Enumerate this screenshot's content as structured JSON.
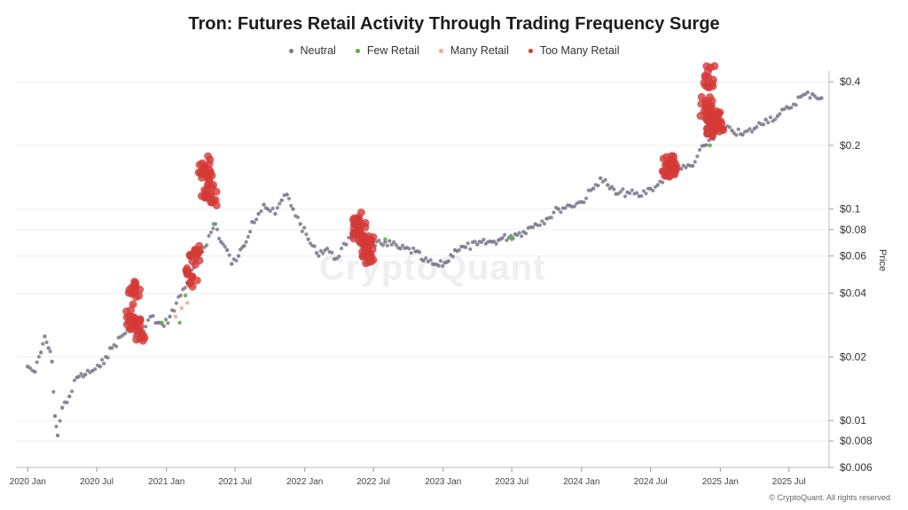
{
  "chart_data": {
    "type": "scatter",
    "title": "Tron: Futures Retail Activity Through Trading Frequency Surge",
    "ylabel": "Price",
    "yscale": "log",
    "ylim": [
      0.006,
      0.45
    ],
    "xlim": [
      "2019-12-01",
      "2025-10-15"
    ],
    "y_ticks": [
      {
        "value": 0.4,
        "label": "$0.4"
      },
      {
        "value": 0.2,
        "label": "$0.2"
      },
      {
        "value": 0.1,
        "label": "$0.1"
      },
      {
        "value": 0.08,
        "label": "$0.08"
      },
      {
        "value": 0.06,
        "label": "$0.06"
      },
      {
        "value": 0.04,
        "label": "$0.04"
      },
      {
        "value": 0.02,
        "label": "$0.02"
      },
      {
        "value": 0.01,
        "label": "$0.01"
      },
      {
        "value": 0.008,
        "label": "$0.008"
      },
      {
        "value": 0.006,
        "label": "$0.006"
      }
    ],
    "x_ticks": [
      {
        "date": "2020-01-01",
        "label": "2020 Jan"
      },
      {
        "date": "2020-07-01",
        "label": "2020 Jul"
      },
      {
        "date": "2021-01-01",
        "label": "2021 Jan"
      },
      {
        "date": "2021-07-01",
        "label": "2021 Jul"
      },
      {
        "date": "2022-01-01",
        "label": "2022 Jan"
      },
      {
        "date": "2022-07-01",
        "label": "2022 Jul"
      },
      {
        "date": "2023-01-01",
        "label": "2023 Jan"
      },
      {
        "date": "2023-07-01",
        "label": "2023 Jul"
      },
      {
        "date": "2024-01-01",
        "label": "2024 Jan"
      },
      {
        "date": "2024-07-01",
        "label": "2024 Jul"
      },
      {
        "date": "2025-01-01",
        "label": "2025 Jan"
      },
      {
        "date": "2025-07-01",
        "label": "2025 Jul"
      }
    ],
    "legend": [
      {
        "name": "Neutral",
        "color": "#7b7889"
      },
      {
        "name": "Few Retail",
        "color": "#5fae4a"
      },
      {
        "name": "Many Retail",
        "color": "#f0a896"
      },
      {
        "name": "Too Many Retail",
        "color": "#d43a36"
      }
    ],
    "series": [
      {
        "name": "Neutral",
        "color": "#7b7889",
        "points": [
          [
            "2020-01-01",
            0.018
          ],
          [
            "2020-01-20",
            0.017
          ],
          [
            "2020-02-05",
            0.021
          ],
          [
            "2020-02-15",
            0.025
          ],
          [
            "2020-02-25",
            0.022
          ],
          [
            "2020-03-05",
            0.019
          ],
          [
            "2020-03-13",
            0.0105
          ],
          [
            "2020-03-20",
            0.0085
          ],
          [
            "2020-04-01",
            0.0115
          ],
          [
            "2020-04-20",
            0.013
          ],
          [
            "2020-05-10",
            0.016
          ],
          [
            "2020-06-01",
            0.0165
          ],
          [
            "2020-06-20",
            0.0172
          ],
          [
            "2020-07-10",
            0.018
          ],
          [
            "2020-07-25",
            0.02
          ],
          [
            "2020-08-10",
            0.022
          ],
          [
            "2020-09-20",
            0.027
          ],
          [
            "2020-10-15",
            0.026
          ],
          [
            "2020-11-01",
            0.0265
          ],
          [
            "2020-11-20",
            0.031
          ],
          [
            "2020-12-10",
            0.029
          ],
          [
            "2020-12-25",
            0.028
          ],
          [
            "2021-01-10",
            0.031
          ],
          [
            "2021-05-10",
            0.085
          ],
          [
            "2021-05-25",
            0.07
          ],
          [
            "2021-06-10",
            0.064
          ],
          [
            "2021-06-22",
            0.055
          ],
          [
            "2021-07-10",
            0.06
          ],
          [
            "2021-07-25",
            0.067
          ],
          [
            "2021-08-15",
            0.087
          ],
          [
            "2021-09-01",
            0.095
          ],
          [
            "2021-09-15",
            0.105
          ],
          [
            "2021-09-25",
            0.1
          ],
          [
            "2021-10-15",
            0.095
          ],
          [
            "2021-11-01",
            0.11
          ],
          [
            "2021-11-15",
            0.117
          ],
          [
            "2021-12-01",
            0.1
          ],
          [
            "2021-12-20",
            0.085
          ],
          [
            "2022-01-10",
            0.072
          ],
          [
            "2022-02-01",
            0.062
          ],
          [
            "2022-03-01",
            0.065
          ],
          [
            "2022-03-20",
            0.058
          ],
          [
            "2022-04-20",
            0.068
          ],
          [
            "2022-05-10",
            0.078
          ],
          [
            "2022-05-20",
            0.07
          ],
          [
            "2022-06-01",
            0.07
          ],
          [
            "2022-07-05",
            0.067
          ],
          [
            "2022-08-01",
            0.07
          ],
          [
            "2022-09-10",
            0.065
          ],
          [
            "2022-10-20",
            0.063
          ],
          [
            "2022-11-10",
            0.057
          ],
          [
            "2022-12-05",
            0.055
          ],
          [
            "2022-12-20",
            0.054
          ],
          [
            "2023-01-10",
            0.056
          ],
          [
            "2023-02-01",
            0.064
          ],
          [
            "2023-03-01",
            0.066
          ],
          [
            "2023-04-01",
            0.068
          ],
          [
            "2023-05-10",
            0.07
          ],
          [
            "2023-06-01",
            0.072
          ],
          [
            "2023-07-10",
            0.076
          ],
          [
            "2023-08-01",
            0.078
          ],
          [
            "2023-09-01",
            0.085
          ],
          [
            "2023-10-01",
            0.09
          ],
          [
            "2023-11-01",
            0.1
          ],
          [
            "2023-12-01",
            0.104
          ],
          [
            "2024-01-01",
            0.108
          ],
          [
            "2024-02-01",
            0.125
          ],
          [
            "2024-02-20",
            0.14
          ],
          [
            "2024-03-10",
            0.13
          ],
          [
            "2024-04-01",
            0.118
          ],
          [
            "2024-05-01",
            0.12
          ],
          [
            "2024-06-01",
            0.115
          ],
          [
            "2024-07-01",
            0.125
          ],
          [
            "2024-07-20",
            0.13
          ],
          [
            "2024-08-20",
            0.15
          ],
          [
            "2024-09-20",
            0.155
          ],
          [
            "2024-10-20",
            0.16
          ],
          [
            "2024-11-20",
            0.2
          ],
          [
            "2025-01-01",
            0.24
          ],
          [
            "2025-02-01",
            0.235
          ],
          [
            "2025-03-01",
            0.225
          ],
          [
            "2025-04-01",
            0.24
          ],
          [
            "2025-05-01",
            0.265
          ],
          [
            "2025-06-01",
            0.275
          ],
          [
            "2025-07-01",
            0.3
          ],
          [
            "2025-08-01",
            0.34
          ],
          [
            "2025-09-01",
            0.35
          ],
          [
            "2025-09-25",
            0.335
          ]
        ]
      },
      {
        "name": "Few Retail",
        "color": "#5fae4a",
        "points": [
          [
            "2020-12-20",
            0.029
          ],
          [
            "2021-02-05",
            0.029
          ],
          [
            "2021-02-20",
            0.039
          ],
          [
            "2021-04-10",
            0.112
          ],
          [
            "2021-04-25",
            0.11
          ],
          [
            "2021-05-05",
            0.085
          ],
          [
            "2022-08-01",
            0.072
          ],
          [
            "2023-07-01",
            0.072
          ],
          [
            "2024-12-05",
            0.2
          ]
        ]
      },
      {
        "name": "Many Retail",
        "color": "#f0a896",
        "points": [
          [
            "2020-09-25",
            0.03
          ],
          [
            "2020-10-05",
            0.035
          ],
          [
            "2021-01-25",
            0.031
          ],
          [
            "2021-02-10",
            0.034
          ],
          [
            "2021-02-25",
            0.036
          ],
          [
            "2021-03-15",
            0.055
          ]
        ]
      },
      {
        "name": "Too Many Retail",
        "color": "#d43a36",
        "points": [
          [
            "2020-10-01",
            0.03
          ],
          [
            "2020-10-10",
            0.04
          ],
          [
            "2020-10-20",
            0.027
          ],
          [
            "2021-03-10",
            0.048
          ],
          [
            "2021-03-20",
            0.06
          ],
          [
            "2021-04-12",
            0.16
          ],
          [
            "2021-04-20",
            0.13
          ],
          [
            "2021-04-28",
            0.115
          ],
          [
            "2022-05-15",
            0.085
          ],
          [
            "2022-05-25",
            0.078
          ],
          [
            "2022-06-05",
            0.075
          ],
          [
            "2022-06-15",
            0.065
          ],
          [
            "2022-06-20",
            0.062
          ],
          [
            "2024-08-15",
            0.16
          ],
          [
            "2024-08-25",
            0.155
          ],
          [
            "2024-11-25",
            0.3
          ],
          [
            "2024-12-05",
            0.27
          ],
          [
            "2024-12-12",
            0.25
          ],
          [
            "2024-12-25",
            0.26
          ],
          [
            "2024-12-01",
            0.42
          ]
        ]
      }
    ]
  },
  "watermark": "CryptoQuant",
  "footer": "© CryptoQuant. All rights reserved"
}
